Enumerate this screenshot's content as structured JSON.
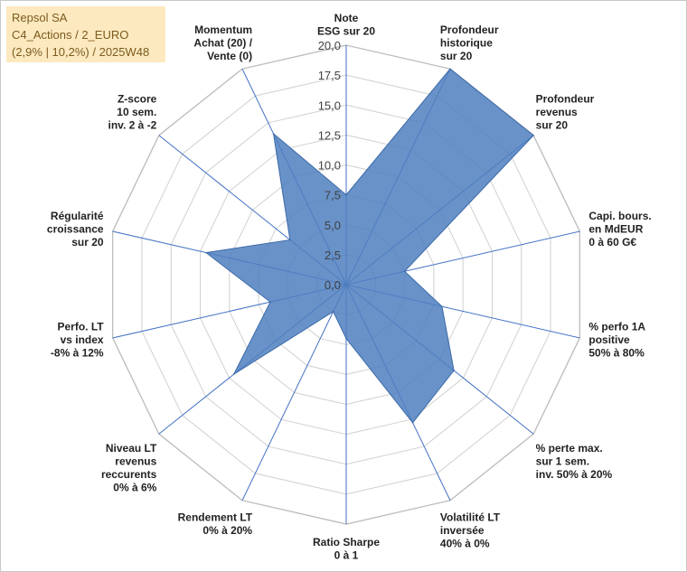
{
  "title_box": {
    "line1": "Repsol SA",
    "line2": "C4_Actions / 2_EURO",
    "line3": "(2,9% | 10,2%) / 2025W48"
  },
  "colors": {
    "fill": "#4f7fc0",
    "stroke": "#3c6aa8",
    "grid": "#d0d0d0",
    "spoke": "#4472c4",
    "title_bg": "#fde9bf",
    "title_text": "#7b5a1e"
  },
  "chart_data": {
    "type": "radar",
    "rmin": 0,
    "rmax": 20,
    "ticks": [
      "0,0",
      "2,5",
      "5,0",
      "7,5",
      "10,0",
      "12,5",
      "15,0",
      "17,5",
      "20,0"
    ],
    "tick_values": [
      0,
      2.5,
      5,
      7.5,
      10,
      12.5,
      15,
      17.5,
      20
    ],
    "grid": true,
    "axes": [
      {
        "label": [
          "Note",
          "ESG sur 20"
        ],
        "value": 7.5
      },
      {
        "label": [
          "Profondeur",
          "historique",
          "sur 20"
        ],
        "value": 20
      },
      {
        "label": [
          "Profondeur",
          "revenus",
          "sur 20"
        ],
        "value": 20
      },
      {
        "label": [
          "Capi. bours.",
          "en MdEUR",
          "0 à 60 G€"
        ],
        "value": 5
      },
      {
        "label": [
          "% perfo 1A",
          "positive",
          "50% à 80%"
        ],
        "value": 8.2
      },
      {
        "label": [
          "% perte max.",
          "sur 1 sem.",
          "inv. 50% à 20%"
        ],
        "value": 11.5
      },
      {
        "label": [
          "Volatilité LT",
          "inversée",
          "40% à 0%"
        ],
        "value": 12.8
      },
      {
        "label": [
          "Ratio Sharpe",
          "0 à 1"
        ],
        "value": 4.5
      },
      {
        "label": [
          "Rendement LT",
          "0% à 20%"
        ],
        "value": 2.5
      },
      {
        "label": [
          "Niveau LT",
          "revenus",
          "reccurents",
          "0% à 6%"
        ],
        "value": 12.0
      },
      {
        "label": [
          "Perfo. LT",
          "vs index",
          "-8% à 12%"
        ],
        "value": 6.5
      },
      {
        "label": [
          "Régularité",
          "croissance",
          "sur 20"
        ],
        "value": 12.0
      },
      {
        "label": [
          "Z-score",
          "10 sem.",
          "inv. 2 à -2"
        ],
        "value": 6.0
      },
      {
        "label": [
          "Momentum",
          "Achat (20) /",
          "Vente (0)"
        ],
        "value": 14.0
      }
    ]
  }
}
